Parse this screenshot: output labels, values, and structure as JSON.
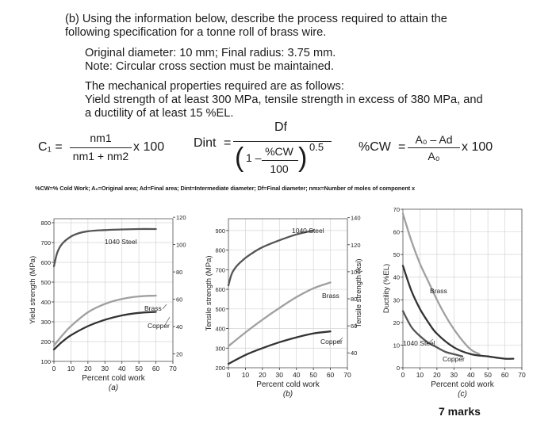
{
  "question": {
    "part_line1": "(b) Using the information below, describe the process required to attain the",
    "part_line2": "following specification for a tonne roll of brass wire.",
    "spec_line1": "Original diameter: 10 mm; Final radius: 3.75 mm.",
    "spec_line2": "Note: Circular cross section must be maintained.",
    "props_line1": "The mechanical properties required are as follows:",
    "props_line2": "Yield strength of at least 300 MPa, tensile strength in excess of 380 MPa, and",
    "props_line3": "a ductility of at least 15 %EL.",
    "marks": "7 marks"
  },
  "formulas": {
    "c1_lhs": "C₁ =",
    "c1_num": "nm1",
    "c1_den": "nm1 + nm2",
    "c1_mult": "x 100",
    "dint_lhs": "Dint",
    "dint_eq": "=",
    "dint_num": "Df",
    "dint_inner_one": "1 –",
    "dint_inner_num": "%CW",
    "dint_inner_den": "100",
    "dint_exp": "0.5",
    "cw_lhs": "%CW",
    "cw_eq": "=",
    "cw_num": "A₀ – Ad",
    "cw_den": "A₀",
    "cw_mult": "x 100",
    "legend": "%CW=% Cold Work; A₀=Original area; Ad=Final area; Dint=Intermediate diameter; Df=Final diameter; nmx=Number of moles of component x"
  },
  "chart_data": [
    {
      "type": "line",
      "caption": "(a)",
      "xlabel": "Percent cold work",
      "ylabel": "Yield strength (MPa)",
      "y2label": "",
      "xlim": [
        0,
        70
      ],
      "ylim": [
        100,
        820
      ],
      "x_ticks": [
        0,
        10,
        20,
        30,
        40,
        50,
        60,
        70
      ],
      "y_ticks": [
        100,
        200,
        300,
        400,
        500,
        600,
        700,
        800
      ],
      "y2_ticks_ksi": [
        20,
        40,
        60,
        80,
        100,
        120
      ],
      "grid": true,
      "series": [
        {
          "name": "1040 Steel",
          "color": "#555555",
          "x": [
            0,
            2,
            5,
            10,
            15,
            20,
            30,
            40,
            50,
            60
          ],
          "y": [
            580,
            650,
            695,
            730,
            748,
            757,
            763,
            766,
            768,
            768
          ]
        },
        {
          "name": "Brass",
          "color": "#a0a0a0",
          "x": [
            0,
            5,
            10,
            20,
            30,
            40,
            50,
            60
          ],
          "y": [
            180,
            232,
            278,
            348,
            390,
            415,
            428,
            432
          ]
        },
        {
          "name": "Copper",
          "color": "#333333",
          "x": [
            0,
            5,
            10,
            20,
            30,
            40,
            50,
            60
          ],
          "y": [
            160,
            200,
            232,
            278,
            310,
            332,
            345,
            350
          ]
        }
      ],
      "labels": [
        "1040 Steel",
        "Brass",
        "Copper"
      ]
    },
    {
      "type": "line",
      "caption": "(b)",
      "xlabel": "Percent cold work",
      "ylabel": "Tensile strength (MPa)",
      "y2label": "Tensile strength (ksi)",
      "xlim": [
        0,
        70
      ],
      "ylim": [
        200,
        960
      ],
      "x_ticks": [
        0,
        10,
        20,
        30,
        40,
        50,
        60,
        70
      ],
      "y_ticks": [
        200,
        300,
        400,
        500,
        600,
        700,
        800,
        900
      ],
      "y2_ticks_ksi": [
        40,
        60,
        80,
        100,
        120,
        140
      ],
      "grid": true,
      "series": [
        {
          "name": "1040 Steel",
          "color": "#555555",
          "x": [
            0,
            2,
            5,
            10,
            15,
            20,
            30,
            40,
            50
          ],
          "y": [
            620,
            680,
            720,
            760,
            790,
            815,
            850,
            880,
            900
          ]
        },
        {
          "name": "Brass",
          "color": "#a0a0a0",
          "x": [
            0,
            10,
            20,
            30,
            40,
            50,
            60
          ],
          "y": [
            310,
            380,
            445,
            505,
            560,
            605,
            635
          ]
        },
        {
          "name": "Copper",
          "color": "#333333",
          "x": [
            0,
            10,
            20,
            30,
            40,
            50,
            60
          ],
          "y": [
            220,
            265,
            300,
            330,
            355,
            375,
            385
          ]
        }
      ],
      "labels": [
        "1040 Steel",
        "Brass",
        "Copper"
      ]
    },
    {
      "type": "line",
      "caption": "(c)",
      "xlabel": "Percent cold work",
      "ylabel": "Ductility (%EL)",
      "xlim": [
        0,
        70
      ],
      "ylim": [
        0,
        70
      ],
      "x_ticks": [
        0,
        10,
        20,
        30,
        40,
        50,
        60,
        70
      ],
      "y_ticks": [
        0,
        10,
        20,
        30,
        40,
        50,
        60,
        70
      ],
      "grid": true,
      "series": [
        {
          "name": "Brass",
          "color": "#a0a0a0",
          "x": [
            0,
            5,
            10,
            15,
            20,
            25,
            30,
            35,
            40,
            45
          ],
          "y": [
            68,
            56,
            46,
            38,
            30,
            23,
            17,
            12,
            8,
            6
          ]
        },
        {
          "name": "1040 Steel",
          "color": "#555555",
          "x": [
            0,
            5,
            10,
            15,
            20,
            25,
            30,
            35
          ],
          "y": [
            25,
            18,
            14,
            11,
            9,
            7,
            6,
            5
          ]
        },
        {
          "name": "Copper",
          "color": "#333333",
          "x": [
            0,
            5,
            10,
            15,
            20,
            30,
            40,
            50,
            60,
            65
          ],
          "y": [
            45,
            34,
            26,
            20,
            15,
            9,
            6,
            5,
            4,
            4
          ]
        }
      ],
      "labels": [
        "Brass",
        "1040 Steel",
        "Copper"
      ]
    }
  ]
}
